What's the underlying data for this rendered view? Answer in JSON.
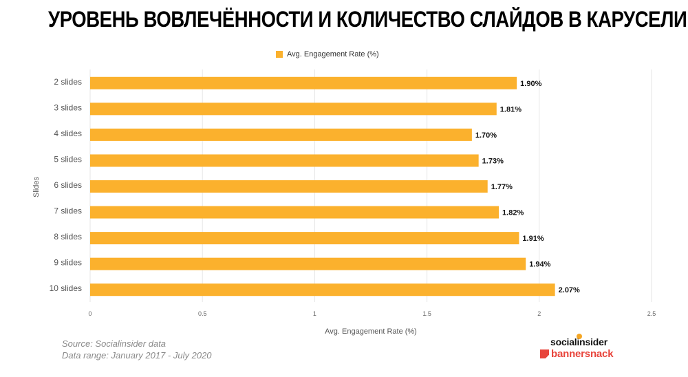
{
  "page": {
    "title": "УРОВЕНЬ ВОВЛЕЧЁННОСТИ И КОЛИЧЕСТВО СЛАЙДОВ В КАРУСЕЛИ"
  },
  "chart_data": {
    "type": "bar",
    "orientation": "horizontal",
    "categories": [
      "2 slides",
      "3 slides",
      "4 slides",
      "5 slides",
      "6 slides",
      "7 slides",
      "8 slides",
      "9 slides",
      "10 slides"
    ],
    "series": [
      {
        "name": "Avg. Engagement Rate (%)",
        "values": [
          1.9,
          1.81,
          1.7,
          1.73,
          1.77,
          1.82,
          1.91,
          1.94,
          2.07
        ]
      }
    ],
    "data_labels": [
      "1.90%",
      "1.81%",
      "1.70%",
      "1.73%",
      "1.77%",
      "1.82%",
      "1.91%",
      "1.94%",
      "2.07%"
    ],
    "xlabel": "Avg. Engagement Rate (%)",
    "ylabel": "Slides",
    "xlim": [
      0,
      2.5
    ],
    "x_ticks": [
      0,
      0.5,
      1,
      1.5,
      2,
      2.5
    ],
    "x_tick_labels": [
      "0",
      "0.5",
      "1",
      "1.5",
      "2",
      "2.5"
    ],
    "grid": true,
    "legend_position": "top-center",
    "bar_color": "#fbb12d"
  },
  "footer": {
    "source": "Source: Socialinsider data",
    "range": "Data range: January 2017 - July 2020"
  },
  "logos": {
    "socialinsider": "socialinsider",
    "bannersnack": "bannersnack"
  }
}
